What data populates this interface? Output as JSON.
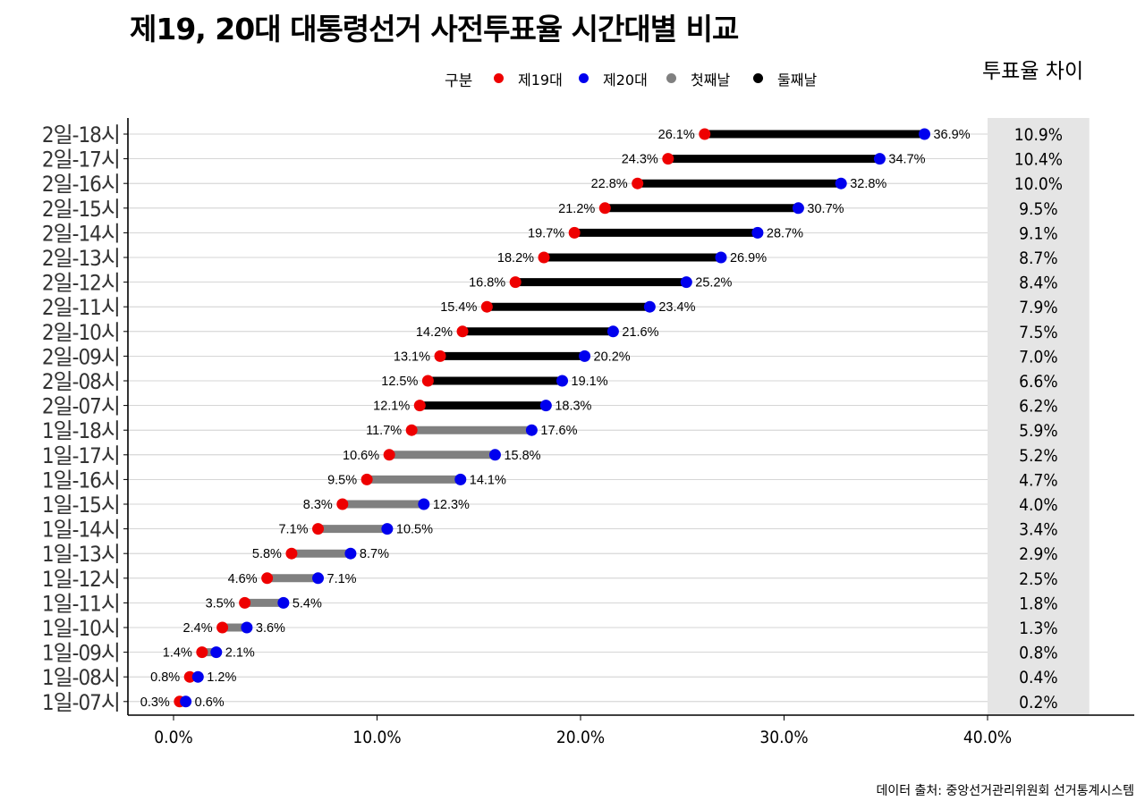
{
  "title": "제19, 20대 대통령선거 사전투표율 시간대별 비교",
  "legend": {
    "title": "구분",
    "items": [
      {
        "label": "제19대",
        "color": "#ee0000",
        "kind": "point"
      },
      {
        "label": "제20대",
        "color": "#0000ee",
        "kind": "point"
      },
      {
        "label": "첫째날",
        "color": "#808080",
        "kind": "segment"
      },
      {
        "label": "둘째날",
        "color": "#000000",
        "kind": "segment"
      }
    ]
  },
  "diff_header": "투표율 차이",
  "source": "데이터 출처: 중앙선거관리위원회 선거통계시스템",
  "chart_data": {
    "type": "dumbbell",
    "title": "제19, 20대 대통령선거 사전투표율 시간대별 비교",
    "xlabel": "",
    "ylabel": "",
    "xlim": [
      0,
      45
    ],
    "xticks": [
      0,
      10,
      20,
      30,
      40
    ],
    "xtick_labels": [
      "0.0%",
      "10.0%",
      "20.0%",
      "30.0%",
      "40.0%"
    ],
    "grid": "horizontal",
    "legend_position": "top",
    "colors": {
      "19": "#ee0000",
      "20": "#0000ee",
      "day1": "#808080",
      "day2": "#000000",
      "diff_panel": "#e5e5e5"
    },
    "rows": [
      {
        "label": "2일-18시",
        "day": 2,
        "v19": 26.1,
        "v20": 36.9,
        "diff": "10.9%"
      },
      {
        "label": "2일-17시",
        "day": 2,
        "v19": 24.3,
        "v20": 34.7,
        "diff": "10.4%"
      },
      {
        "label": "2일-16시",
        "day": 2,
        "v19": 22.8,
        "v20": 32.8,
        "diff": "10.0%"
      },
      {
        "label": "2일-15시",
        "day": 2,
        "v19": 21.2,
        "v20": 30.7,
        "diff": "9.5%"
      },
      {
        "label": "2일-14시",
        "day": 2,
        "v19": 19.7,
        "v20": 28.7,
        "diff": "9.1%"
      },
      {
        "label": "2일-13시",
        "day": 2,
        "v19": 18.2,
        "v20": 26.9,
        "diff": "8.7%"
      },
      {
        "label": "2일-12시",
        "day": 2,
        "v19": 16.8,
        "v20": 25.2,
        "diff": "8.4%"
      },
      {
        "label": "2일-11시",
        "day": 2,
        "v19": 15.4,
        "v20": 23.4,
        "diff": "7.9%"
      },
      {
        "label": "2일-10시",
        "day": 2,
        "v19": 14.2,
        "v20": 21.6,
        "diff": "7.5%"
      },
      {
        "label": "2일-09시",
        "day": 2,
        "v19": 13.1,
        "v20": 20.2,
        "diff": "7.0%"
      },
      {
        "label": "2일-08시",
        "day": 2,
        "v19": 12.5,
        "v20": 19.1,
        "diff": "6.6%"
      },
      {
        "label": "2일-07시",
        "day": 2,
        "v19": 12.1,
        "v20": 18.3,
        "diff": "6.2%"
      },
      {
        "label": "1일-18시",
        "day": 1,
        "v19": 11.7,
        "v20": 17.6,
        "diff": "5.9%"
      },
      {
        "label": "1일-17시",
        "day": 1,
        "v19": 10.6,
        "v20": 15.8,
        "diff": "5.2%"
      },
      {
        "label": "1일-16시",
        "day": 1,
        "v19": 9.5,
        "v20": 14.1,
        "diff": "4.7%"
      },
      {
        "label": "1일-15시",
        "day": 1,
        "v19": 8.3,
        "v20": 12.3,
        "diff": "4.0%"
      },
      {
        "label": "1일-14시",
        "day": 1,
        "v19": 7.1,
        "v20": 10.5,
        "diff": "3.4%"
      },
      {
        "label": "1일-13시",
        "day": 1,
        "v19": 5.8,
        "v20": 8.7,
        "diff": "2.9%"
      },
      {
        "label": "1일-12시",
        "day": 1,
        "v19": 4.6,
        "v20": 7.1,
        "diff": "2.5%"
      },
      {
        "label": "1일-11시",
        "day": 1,
        "v19": 3.5,
        "v20": 5.4,
        "diff": "1.8%"
      },
      {
        "label": "1일-10시",
        "day": 1,
        "v19": 2.4,
        "v20": 3.6,
        "diff": "1.3%"
      },
      {
        "label": "1일-09시",
        "day": 1,
        "v19": 1.4,
        "v20": 2.1,
        "diff": "0.8%"
      },
      {
        "label": "1일-08시",
        "day": 1,
        "v19": 0.8,
        "v20": 1.2,
        "diff": "0.4%"
      },
      {
        "label": "1일-07시",
        "day": 1,
        "v19": 0.3,
        "v20": 0.6,
        "diff": "0.2%"
      }
    ]
  }
}
